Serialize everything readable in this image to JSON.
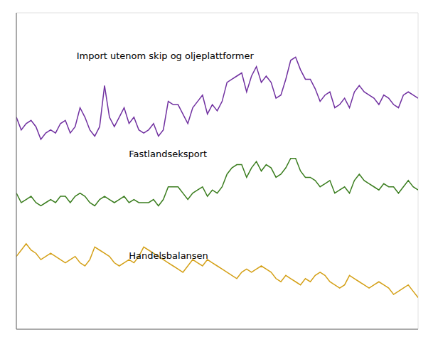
{
  "chart_data": {
    "type": "line",
    "title": "",
    "x": [
      0,
      1,
      2,
      3,
      4,
      5,
      6,
      7,
      8,
      9,
      10,
      11,
      12,
      13,
      14,
      15,
      16,
      17,
      18,
      19,
      20,
      21,
      22,
      23,
      24,
      25,
      26,
      27,
      28,
      29,
      30,
      31,
      32,
      33,
      34,
      35,
      36,
      37,
      38,
      39,
      40,
      41,
      42,
      43,
      44,
      45,
      46,
      47,
      48,
      49,
      50,
      51,
      52,
      53,
      54,
      55,
      56,
      57,
      58,
      59,
      60,
      61,
      62,
      63,
      64,
      65,
      66,
      67,
      68,
      69,
      70,
      71,
      72,
      73,
      74,
      75,
      76,
      77,
      78,
      79,
      80,
      81,
      82
    ],
    "series": [
      {
        "color": "#7030a0",
        "values": [
          62,
          58,
          60,
          61,
          59,
          55,
          57,
          58,
          57,
          60,
          61,
          57,
          59,
          65,
          62,
          58,
          56,
          59,
          72,
          62,
          59,
          62,
          65,
          60,
          62,
          58,
          57,
          58,
          60,
          56,
          58,
          67,
          66,
          66,
          63,
          60,
          65,
          67,
          69,
          63,
          66,
          64,
          67,
          73,
          74,
          75,
          76,
          70,
          75,
          78,
          73,
          75,
          73,
          68,
          69,
          74,
          80,
          81,
          77,
          74,
          74,
          71,
          67,
          69,
          70,
          65,
          66,
          68,
          65,
          70,
          72,
          70,
          69,
          68,
          66,
          69,
          68,
          66,
          65,
          69,
          70,
          69,
          68
        ]
      },
      {
        "color": "#3a7d1e",
        "values": [
          38,
          35,
          36,
          37,
          35,
          34,
          35,
          36,
          35,
          37,
          37,
          35,
          37,
          38,
          37,
          35,
          34,
          36,
          37,
          36,
          35,
          36,
          37,
          35,
          36,
          35,
          35,
          35,
          36,
          34,
          36,
          40,
          40,
          40,
          38,
          36,
          38,
          39,
          40,
          37,
          39,
          38,
          40,
          44,
          46,
          47,
          47,
          43,
          46,
          48,
          45,
          47,
          46,
          43,
          44,
          46,
          49,
          49,
          45,
          43,
          43,
          42,
          40,
          41,
          42,
          38,
          39,
          40,
          38,
          42,
          44,
          42,
          41,
          40,
          39,
          41,
          40,
          40,
          38,
          40,
          42,
          40,
          39
        ]
      },
      {
        "color": "#d4a017",
        "values": [
          18,
          20,
          22,
          20,
          19,
          17,
          18,
          19,
          18,
          17,
          16,
          17,
          18,
          16,
          15,
          17,
          21,
          20,
          19,
          18,
          16,
          15,
          16,
          17,
          16,
          18,
          21,
          20,
          19,
          18,
          17,
          16,
          15,
          14,
          13,
          15,
          17,
          16,
          15,
          17,
          16,
          15,
          14,
          13,
          12,
          11,
          13,
          14,
          13,
          14,
          15,
          14,
          13,
          11,
          10,
          12,
          11,
          10,
          9,
          11,
          10,
          12,
          13,
          12,
          10,
          9,
          8,
          9,
          12,
          11,
          10,
          9,
          8,
          9,
          10,
          9,
          8,
          6,
          7,
          8,
          9,
          7,
          5
        ]
      }
    ],
    "annotations": [
      "Import utenom skip og oljeplattformer",
      "Fastlandseksport",
      "Handelsbalansen"
    ],
    "xlim": [
      0,
      82
    ],
    "xticks": [
      0,
      10,
      20,
      30,
      40,
      50,
      60,
      70,
      80
    ],
    "ylim": [
      -5,
      95
    ],
    "yticks": [
      0,
      20,
      40,
      60,
      80
    ],
    "grid": true,
    "tick_labels": false
  }
}
